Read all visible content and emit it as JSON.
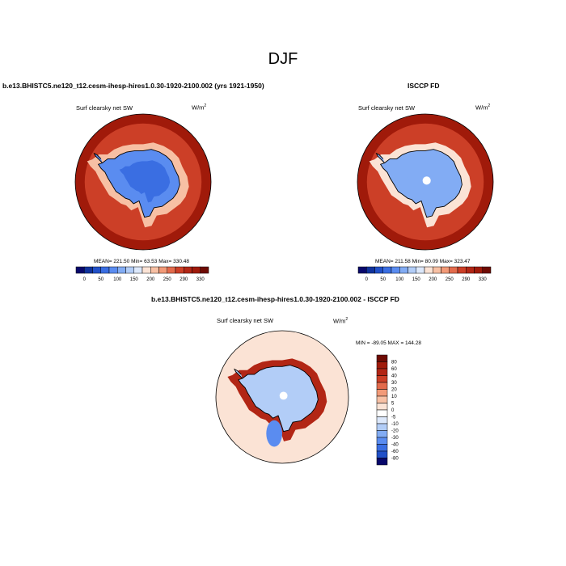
{
  "figure": {
    "title": "DJF"
  },
  "panels": [
    {
      "title": "b.e13.BHISTC5.ne120_t12.cesm-ihesp-hires1.0.30-1920-2100.002 (yrs 1921-1950)",
      "variable": "Surf clearsky net SW",
      "units": "W/m",
      "units_sup": "2",
      "stats_text": "MEAN= 221.50  Min=  63.53  Max= 330.48"
    },
    {
      "title": "ISCCP FD",
      "variable": "Surf clearsky net SW",
      "units": "W/m",
      "units_sup": "2",
      "stats_text": "MEAN= 211.58  Min=  80.09  Max= 323.47"
    },
    {
      "title": "b.e13.BHISTC5.ne120_t12.cesm-ihesp-hires1.0.30-1920-2100.002 - ISCCP FD",
      "variable": "Surf clearsky net SW",
      "units": "W/m",
      "units_sup": "2",
      "stats_text": "MIN = -89.05 MAX = 144.28"
    }
  ],
  "chart_data": [
    {
      "type": "heatmap",
      "projection": "south-polar-stereographic",
      "title": "b.e13.BHISTC5.ne120_t12.cesm-ihesp-hires1.0.30-1920-2100.002 (yrs 1921-1950)",
      "variable": "Surf clearsky net SW",
      "units": "W/m2",
      "mean": 221.5,
      "min": 63.53,
      "max": 330.48,
      "colorbar": {
        "orientation": "horizontal",
        "tick_labels": [
          "0",
          "50",
          "100",
          "150",
          "200",
          "250",
          "290",
          "330"
        ],
        "levels": [
          0,
          25,
          50,
          75,
          100,
          125,
          150,
          175,
          200,
          225,
          250,
          270,
          290,
          310,
          330
        ],
        "colors": [
          "#08086b",
          "#10329c",
          "#2150c8",
          "#3a6ee2",
          "#5a8cf0",
          "#82acf4",
          "#b2cdf7",
          "#dce8fb",
          "#fbe3d5",
          "#f7c0a4",
          "#f29a78",
          "#e36b4c",
          "#cc3f27",
          "#b22615",
          "#a01a0a",
          "#6e0b03"
        ]
      },
      "contours": [
        {
          "region": "ocean-outer-ring",
          "value": 310
        },
        {
          "region": "ocean-mid",
          "value": 270
        },
        {
          "region": "sea-ice-zone",
          "value": 200
        },
        {
          "region": "antarctica-ice-sheet",
          "value": 88
        },
        {
          "region": "antarctica-interior",
          "value": 70
        }
      ]
    },
    {
      "type": "heatmap",
      "projection": "south-polar-stereographic",
      "title": "ISCCP FD",
      "variable": "Surf clearsky net SW",
      "units": "W/m2",
      "mean": 211.58,
      "min": 80.09,
      "max": 323.47,
      "colorbar": {
        "orientation": "horizontal",
        "tick_labels": [
          "0",
          "50",
          "100",
          "150",
          "200",
          "250",
          "290",
          "330"
        ],
        "levels": [
          0,
          25,
          50,
          75,
          100,
          125,
          150,
          175,
          200,
          225,
          250,
          270,
          290,
          310,
          330
        ],
        "colors": [
          "#08086b",
          "#10329c",
          "#2150c8",
          "#3a6ee2",
          "#5a8cf0",
          "#82acf4",
          "#b2cdf7",
          "#dce8fb",
          "#fbe3d5",
          "#f7c0a4",
          "#f29a78",
          "#e36b4c",
          "#cc3f27",
          "#b22615",
          "#a01a0a",
          "#6e0b03"
        ]
      },
      "contours": [
        {
          "region": "ocean-outer-ring",
          "value": 310
        },
        {
          "region": "ocean-mid",
          "value": 270
        },
        {
          "region": "sea-ice-zone",
          "value": 180
        },
        {
          "region": "antarctica-ice-sheet",
          "value": 120
        },
        {
          "region": "antarctica-interior",
          "value": 110
        }
      ],
      "missing_region": "south-pole"
    },
    {
      "type": "heatmap",
      "projection": "south-polar-stereographic",
      "title": "b.e13.BHISTC5.ne120_t12.cesm-ihesp-hires1.0.30-1920-2100.002 - ISCCP FD",
      "variable": "Surf clearsky net SW",
      "units": "W/m2",
      "min": -89.05,
      "max": 144.28,
      "colorbar": {
        "orientation": "vertical",
        "tick_labels": [
          "80",
          "60",
          "40",
          "30",
          "20",
          "10",
          "5",
          "0",
          "-5",
          "-10",
          "-20",
          "-30",
          "-40",
          "-60",
          "-80"
        ],
        "levels": [
          80,
          60,
          40,
          30,
          20,
          10,
          5,
          0,
          -5,
          -10,
          -20,
          -30,
          -40,
          -60,
          -80
        ],
        "colors": [
          "#6e0b03",
          "#a01a0a",
          "#b22615",
          "#cc3f27",
          "#e36b4c",
          "#f29a78",
          "#f7c0a4",
          "#fbe3d5",
          "#ffffff",
          "#dce8fb",
          "#b2cdf7",
          "#82acf4",
          "#5a8cf0",
          "#3a6ee2",
          "#2150c8",
          "#08086b"
        ]
      },
      "contours": [
        {
          "region": "open-ocean",
          "value": 0
        },
        {
          "region": "sea-ice-zone",
          "value": 40
        },
        {
          "region": "antarctica-ice-sheet",
          "value": -20
        },
        {
          "region": "weddell-sea",
          "value": -40
        }
      ],
      "missing_region": "south-pole"
    }
  ]
}
